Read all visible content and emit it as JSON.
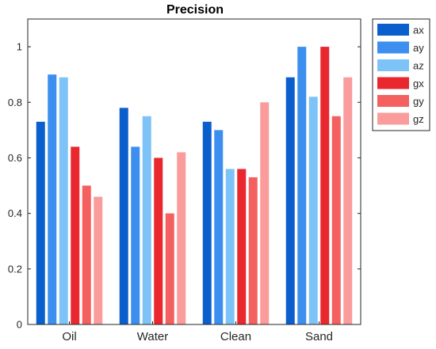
{
  "chart_data": {
    "type": "bar",
    "title": "Precision",
    "xlabel": "",
    "ylabel": "",
    "categories": [
      "Oil",
      "Water",
      "Clean",
      "Sand"
    ],
    "ylim": [
      0,
      1.1
    ],
    "yticks": [
      0,
      0.2,
      0.4,
      0.6,
      0.8,
      1
    ],
    "legend_position": "top-right-outside",
    "grid": false,
    "series": [
      {
        "name": "ax",
        "color": "#0a5fcc",
        "values": [
          0.73,
          0.78,
          0.73,
          0.89
        ]
      },
      {
        "name": "ay",
        "color": "#3d8fef",
        "values": [
          0.9,
          0.64,
          0.7,
          1.0
        ]
      },
      {
        "name": "az",
        "color": "#7ec3f7",
        "values": [
          0.89,
          0.75,
          0.56,
          0.82
        ]
      },
      {
        "name": "gx",
        "color": "#e8282e",
        "values": [
          0.64,
          0.6,
          0.56,
          1.0
        ]
      },
      {
        "name": "gy",
        "color": "#f4605f",
        "values": [
          0.5,
          0.4,
          0.53,
          0.75
        ]
      },
      {
        "name": "gz",
        "color": "#f99c9b",
        "values": [
          0.46,
          0.62,
          0.8,
          0.89
        ]
      }
    ]
  }
}
